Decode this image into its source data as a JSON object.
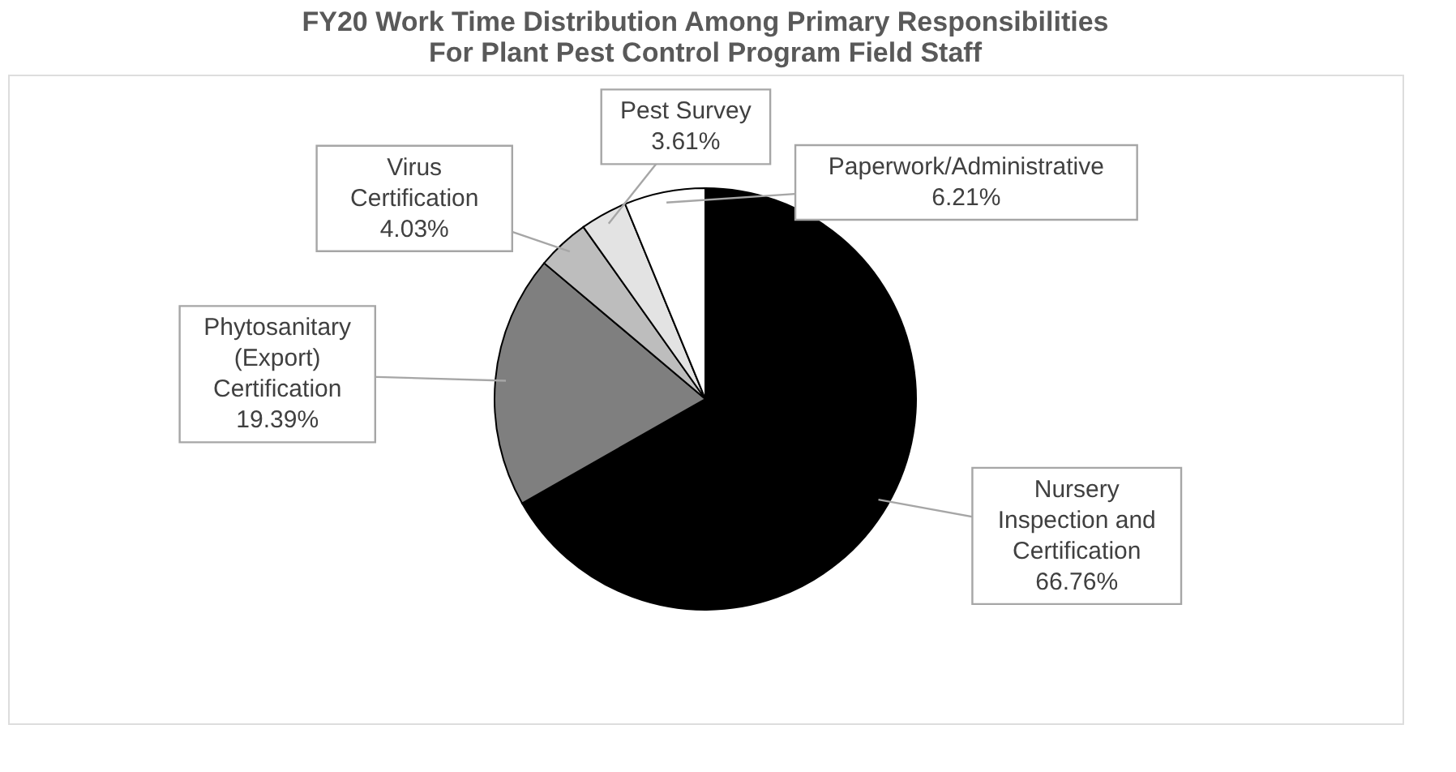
{
  "chart_data": {
    "type": "pie",
    "title": [
      "FY20 Work Time Distribution Among Primary Responsibilities",
      "For Plant Pest Control Program Field Staff"
    ],
    "categories": [
      "Nursery Inspection and Certification",
      "Phytosanitary (Export) Certification",
      "Virus Certification",
      "Pest Survey",
      "Paperwork/Administrative"
    ],
    "values": [
      66.76,
      19.39,
      4.03,
      3.61,
      6.21
    ],
    "value_labels": [
      "66.76%",
      "19.39%",
      "4.03%",
      "3.61%",
      "6.21%"
    ],
    "colors": [
      "#000000",
      "#7f7f7f",
      "#bdbdbd",
      "#e3e3e3",
      "#ffffff"
    ],
    "legend": false
  }
}
